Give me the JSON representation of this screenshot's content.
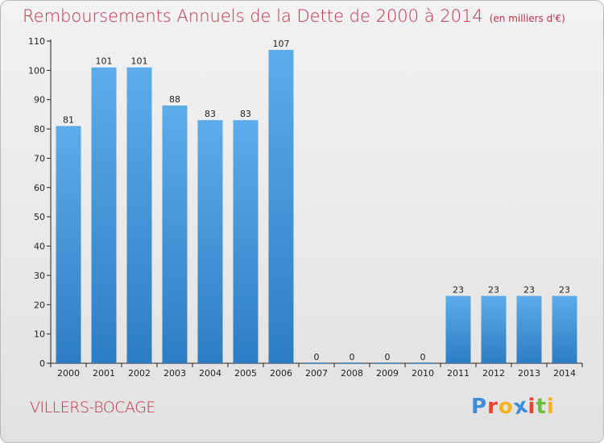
{
  "header": {
    "title": "Remboursements Annuels de la Dette de 2000 à 2014",
    "unit": "(en milliers d'€)"
  },
  "footer": {
    "commune": "VILLERS-BOCAGE",
    "logo": "Proxiti"
  },
  "colors": {
    "accent": "#c0304a",
    "bar_top": "#5dacea",
    "bar_bottom": "#2c7ec4",
    "logo_letters": [
      "#3b8fd9",
      "#e8412c",
      "#f7b21b",
      "#3b8fd9",
      "#e8412c",
      "#6cbf3a",
      "#f7b21b"
    ]
  },
  "chart_data": {
    "type": "bar",
    "title": "Remboursements Annuels de la Dette de 2000 à 2014",
    "unit": "(en milliers d'€)",
    "categories": [
      "2000",
      "2001",
      "2002",
      "2003",
      "2004",
      "2005",
      "2006",
      "2007",
      "2008",
      "2009",
      "2010",
      "2011",
      "2012",
      "2013",
      "2014"
    ],
    "values": [
      81,
      101,
      101,
      88,
      83,
      83,
      107,
      0,
      0,
      0,
      0,
      23,
      23,
      23,
      23
    ],
    "ylim": [
      0,
      110
    ],
    "yticks": [
      0,
      10,
      20,
      30,
      40,
      50,
      60,
      70,
      80,
      90,
      100,
      110
    ],
    "grid": false,
    "legend": "none"
  }
}
